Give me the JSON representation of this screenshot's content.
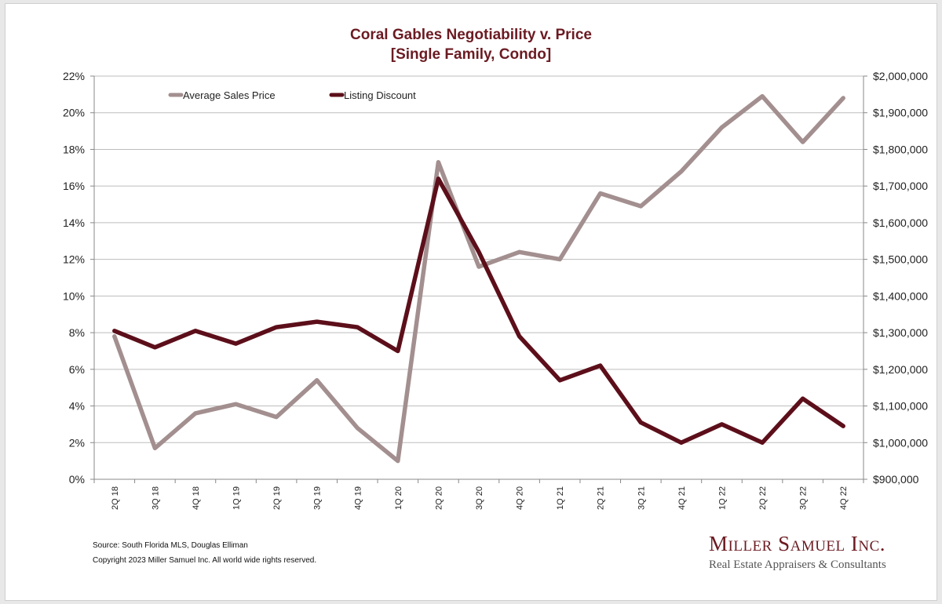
{
  "chart_data": {
    "type": "line",
    "title": "Coral Gables Negotiability v. Price",
    "subtitle": "[Single Family, Condo]",
    "x": [
      "2Q 18",
      "3Q 18",
      "4Q 18",
      "1Q 19",
      "2Q 19",
      "3Q 19",
      "4Q 19",
      "1Q 20",
      "2Q 20",
      "3Q 20",
      "4Q 20",
      "1Q 21",
      "2Q 21",
      "3Q 21",
      "4Q 21",
      "1Q 22",
      "2Q 22",
      "3Q 22",
      "4Q 22"
    ],
    "y_left": {
      "ticks": [
        "0%",
        "2%",
        "4%",
        "6%",
        "8%",
        "10%",
        "12%",
        "14%",
        "16%",
        "18%",
        "20%",
        "22%"
      ],
      "range": [
        0,
        22
      ]
    },
    "y_right": {
      "ticks": [
        "$900,000",
        "$1,000,000",
        "$1,100,000",
        "$1,200,000",
        "$1,300,000",
        "$1,400,000",
        "$1,500,000",
        "$1,600,000",
        "$1,700,000",
        "$1,800,000",
        "$1,900,000",
        "$2,000,000"
      ],
      "range": [
        900000,
        2000000
      ]
    },
    "series": [
      {
        "name": "Average Sales Price",
        "axis": "right",
        "color": "#a38f8f",
        "values": [
          1290000,
          985000,
          1080000,
          1105000,
          1070000,
          1170000,
          1040000,
          950000,
          1765000,
          1480000,
          1520000,
          1500000,
          1680000,
          1645000,
          1740000,
          1860000,
          1945000,
          1820000,
          1940000
        ]
      },
      {
        "name": "Listing Discount",
        "axis": "left",
        "color": "#5c0f1a",
        "values": [
          8.1,
          7.2,
          8.1,
          7.4,
          8.3,
          8.6,
          8.3,
          7.0,
          16.4,
          12.4,
          7.8,
          5.4,
          6.2,
          3.1,
          2.0,
          3.0,
          2.0,
          4.4,
          2.9
        ]
      }
    ],
    "grid": true,
    "legend_position": "top-left"
  },
  "footer": {
    "source": "Source: South Florida MLS, Douglas Elliman",
    "copyright": "Copyright 2023 Miller Samuel Inc.  All world wide rights reserved."
  },
  "logo": {
    "name": "Miller Samuel Inc.",
    "tagline": "Real Estate Appraisers & Consultants"
  }
}
